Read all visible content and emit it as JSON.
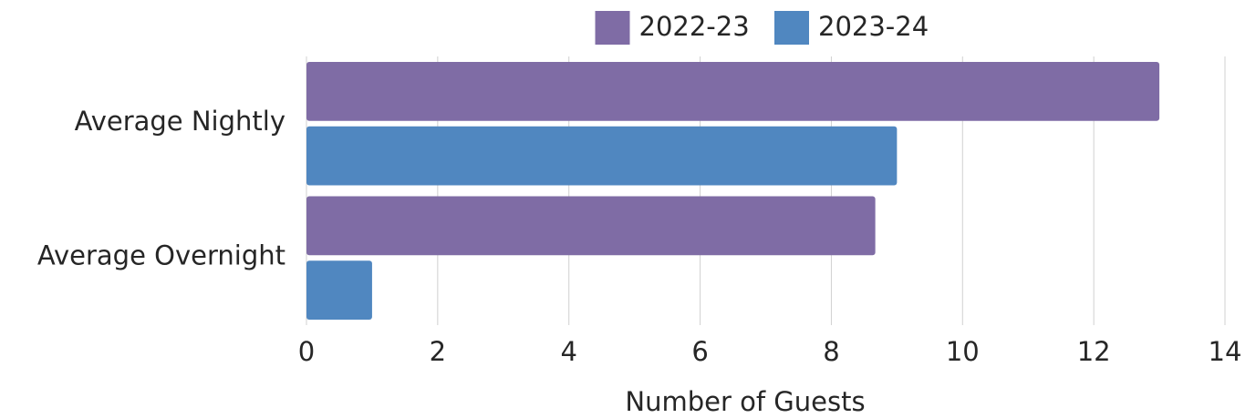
{
  "chart_data": {
    "type": "bar",
    "orientation": "horizontal",
    "categories": [
      "Average Nightly",
      "Average Overnight"
    ],
    "series": [
      {
        "name": "2022-23",
        "color": "#7f6ca5",
        "values": [
          13,
          8.67
        ]
      },
      {
        "name": "2023-24",
        "color": "#5087c0",
        "values": [
          9,
          1
        ]
      }
    ],
    "xlabel": "Number of Guests",
    "xlim": [
      0,
      14
    ],
    "xticks": [
      0,
      2,
      4,
      6,
      8,
      10,
      12,
      14
    ],
    "grid": true,
    "legend": "top"
  }
}
